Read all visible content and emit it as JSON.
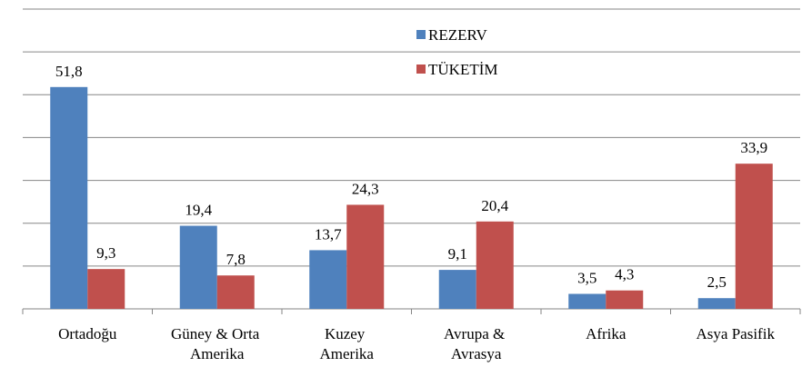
{
  "chart_data": {
    "type": "bar",
    "categories": [
      "Ortadoğu",
      "Güney & Orta Amerika",
      "Kuzey Amerika",
      "Avrupa & Avrasya",
      "Afrika",
      "Asya Pasifik"
    ],
    "series": [
      {
        "name": "REZERV",
        "color": "#4f81bd",
        "values": [
          51.8,
          19.4,
          13.7,
          9.1,
          3.5,
          2.5
        ],
        "value_labels": [
          "51,8",
          "19,4",
          "13,7",
          "9,1",
          "3,5",
          "2,5"
        ]
      },
      {
        "name": "TÜKETİM",
        "color": "#c0504d",
        "values": [
          9.3,
          7.8,
          24.3,
          20.4,
          4.3,
          33.9
        ],
        "value_labels": [
          "9,3",
          "7,8",
          "24,3",
          "20,4",
          "4,3",
          "33,9"
        ]
      }
    ],
    "ylim": [
      0,
      70
    ],
    "yticks": [
      0,
      10,
      20,
      30,
      40,
      50,
      60,
      70
    ],
    "grid": true
  }
}
